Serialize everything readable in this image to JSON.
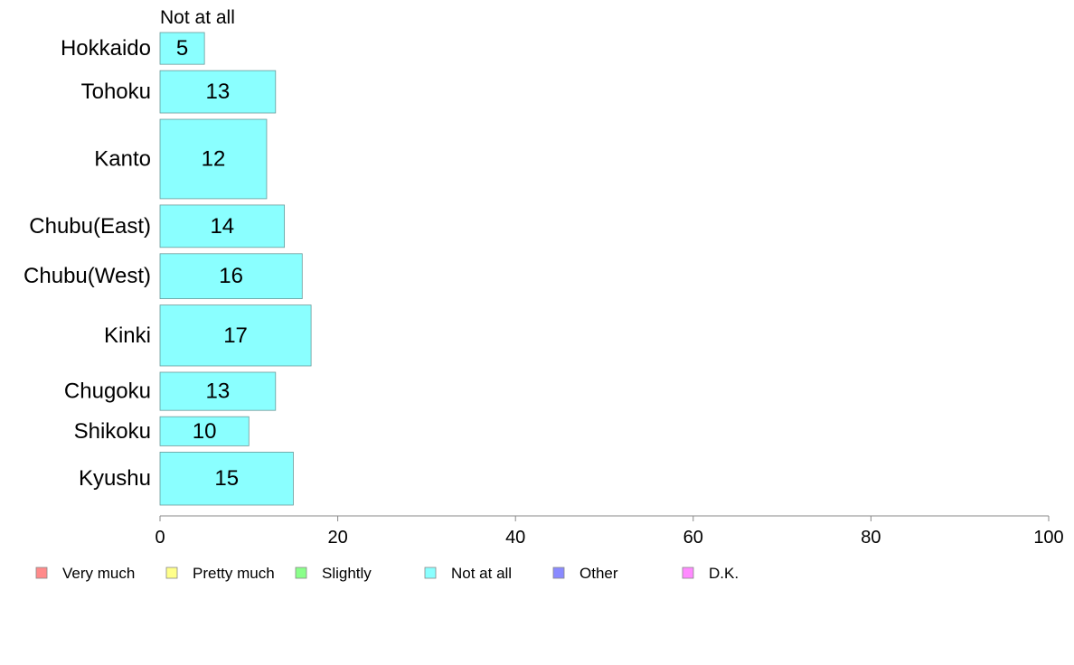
{
  "chart_data": {
    "type": "bar",
    "orientation": "horizontal",
    "stacked": true,
    "series_header": "Not at all",
    "categories": [
      "Hokkaido",
      "Tohoku",
      "Kanto",
      "Chubu(East)",
      "Chubu(West)",
      "Kinki",
      "Chugoku",
      "Shikoku",
      "Kyushu"
    ],
    "relative_bar_widths": [
      0.6,
      0.8,
      1.5,
      0.8,
      0.85,
      1.15,
      0.72,
      0.55,
      1.0
    ],
    "series": [
      {
        "name": "Not at all",
        "values": [
          5,
          13,
          12,
          14,
          16,
          17,
          13,
          10,
          15
        ],
        "color": "#8affff"
      }
    ],
    "xlim": [
      0,
      100
    ],
    "xticks": [
      0,
      20,
      40,
      60,
      80,
      100
    ],
    "grid": false,
    "legend_position": "bottom",
    "legend": [
      {
        "label": "Very much",
        "color": "#ff8a8a"
      },
      {
        "label": "Pretty much",
        "color": "#ffff8a"
      },
      {
        "label": "Slightly",
        "color": "#8aff8a"
      },
      {
        "label": "Not at all",
        "color": "#8affff"
      },
      {
        "label": "Other",
        "color": "#8a8aff"
      },
      {
        "label": "D.K.",
        "color": "#ff8aff"
      }
    ]
  }
}
